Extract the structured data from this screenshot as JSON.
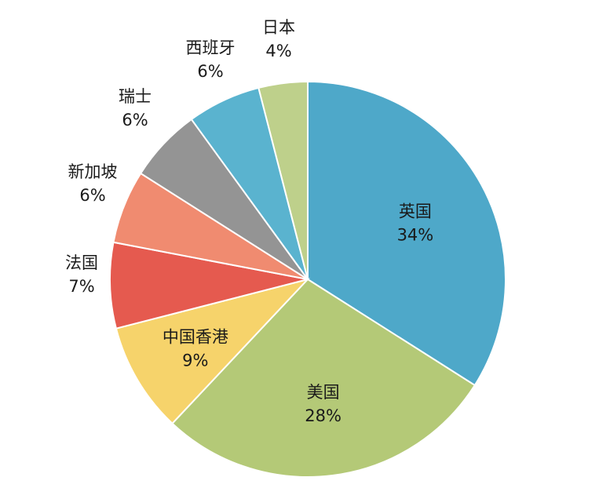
{
  "chart_data": {
    "type": "pie",
    "title": "",
    "start_angle_deg": 0,
    "direction": "clockwise",
    "slices": [
      {
        "label": "英国",
        "value": 34,
        "pct_label": "34%",
        "color": "#4ea8c9"
      },
      {
        "label": "美国",
        "value": 28,
        "pct_label": "28%",
        "color": "#b4c977"
      },
      {
        "label": "中国香港",
        "value": 9,
        "pct_label": "9%",
        "color": "#f6d36b"
      },
      {
        "label": "法国",
        "value": 7,
        "pct_label": "7%",
        "color": "#e55a4f"
      },
      {
        "label": "新加坡",
        "value": 6,
        "pct_label": "6%",
        "color": "#f08b70"
      },
      {
        "label": "瑞士",
        "value": 6,
        "pct_label": "6%",
        "color": "#949494"
      },
      {
        "label": "西班牙",
        "value": 6,
        "pct_label": "6%",
        "color": "#5ab3cf"
      },
      {
        "label": "日本",
        "value": 4,
        "pct_label": "4%",
        "color": "#bed08b"
      }
    ]
  }
}
